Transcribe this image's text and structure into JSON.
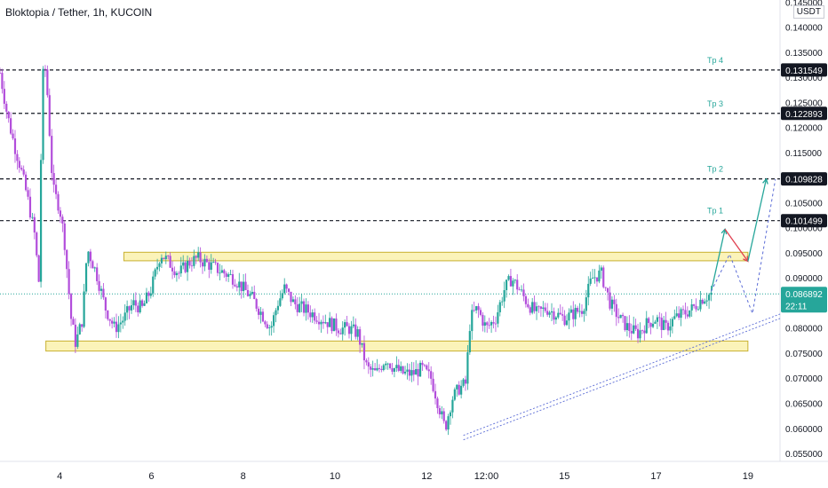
{
  "header": {
    "title": "Bloktopia / Tether, 1h, KUCOIN",
    "currency": "USDT"
  },
  "colors": {
    "up": "#26a69a",
    "down": "#b24ddb",
    "zone_fill": "#fbf3b9",
    "zone_stroke": "#c8b030",
    "target_text": "#26a69a",
    "trend": "#5b6cd6",
    "arrow_green": "#26a69a",
    "arrow_red": "#e04050",
    "price_tag": "#26a69a",
    "level_tag": "#131722"
  },
  "chart_data": {
    "type": "candlestick",
    "title": "Bloktopia / Tether, 1h, KUCOIN",
    "x_ticks": [
      "4",
      "6",
      "8",
      "10",
      "12",
      "12:00",
      "15",
      "17",
      "19"
    ],
    "y_ticks": [
      "0.055000",
      "0.060000",
      "0.065000",
      "0.070000",
      "0.075000",
      "0.080000",
      "0.085000",
      "0.090000",
      "0.095000",
      "0.100000",
      "0.105000",
      "0.110000",
      "0.115000",
      "0.120000",
      "0.125000",
      "0.130000",
      "0.135000",
      "0.140000",
      "0.145000"
    ],
    "ylim": [
      0.0535,
      0.1455
    ],
    "x_range_days": [
      2.7,
      19.7
    ],
    "current_price": {
      "value": 0.086892,
      "label": "0.086892",
      "countdown": "22:11"
    },
    "targets": [
      {
        "name": "Tp 1",
        "value": 0.101499,
        "label": "0.101499"
      },
      {
        "name": "Tp 2",
        "value": 0.109828,
        "label": "0.109828"
      },
      {
        "name": "Tp 3",
        "value": 0.122893,
        "label": "0.122893"
      },
      {
        "name": "Tp 4",
        "value": 0.131549,
        "label": "0.131549"
      }
    ],
    "zones": [
      {
        "from_day": 5.4,
        "to_day": 19.0,
        "low": 0.0935,
        "high": 0.0952
      },
      {
        "from_day": 3.7,
        "to_day": 19.0,
        "low": 0.0755,
        "high": 0.0775
      }
    ],
    "trendline": {
      "from": [
        12.8,
        0.0578
      ],
      "to": [
        19.7,
        0.082
      ]
    },
    "projection_solid": [
      [
        18.2,
        0.0874
      ],
      [
        18.5,
        0.0998
      ],
      [
        19.0,
        0.0934
      ],
      [
        19.4,
        0.1098
      ]
    ],
    "projection_dashed": [
      [
        18.2,
        0.0874
      ],
      [
        18.6,
        0.0948
      ],
      [
        19.1,
        0.083
      ],
      [
        19.6,
        0.1098
      ]
    ],
    "close_path": [
      [
        2.7,
        0.131
      ],
      [
        2.85,
        0.123
      ],
      [
        3.0,
        0.117
      ],
      [
        3.15,
        0.112
      ],
      [
        3.3,
        0.106
      ],
      [
        3.45,
        0.099
      ],
      [
        3.55,
        0.089
      ],
      [
        3.62,
        0.13
      ],
      [
        3.7,
        0.132
      ],
      [
        3.85,
        0.108
      ],
      [
        4.0,
        0.104
      ],
      [
        4.1,
        0.098
      ],
      [
        4.25,
        0.082
      ],
      [
        4.35,
        0.077
      ],
      [
        4.5,
        0.082
      ],
      [
        4.6,
        0.096
      ],
      [
        4.8,
        0.091
      ],
      [
        5.0,
        0.084
      ],
      [
        5.2,
        0.08
      ],
      [
        5.4,
        0.082
      ],
      [
        5.6,
        0.085
      ],
      [
        5.8,
        0.084
      ],
      [
        6.0,
        0.088
      ],
      [
        6.2,
        0.095
      ],
      [
        6.4,
        0.093
      ],
      [
        6.6,
        0.091
      ],
      [
        6.8,
        0.093
      ],
      [
        7.0,
        0.094
      ],
      [
        7.2,
        0.093
      ],
      [
        7.4,
        0.092
      ],
      [
        7.6,
        0.091
      ],
      [
        7.8,
        0.09
      ],
      [
        8.0,
        0.088
      ],
      [
        8.2,
        0.086
      ],
      [
        8.4,
        0.083
      ],
      [
        8.6,
        0.08
      ],
      [
        8.75,
        0.085
      ],
      [
        8.9,
        0.088
      ],
      [
        9.1,
        0.085
      ],
      [
        9.3,
        0.084
      ],
      [
        9.5,
        0.083
      ],
      [
        9.7,
        0.082
      ],
      [
        9.9,
        0.081
      ],
      [
        10.1,
        0.08
      ],
      [
        10.3,
        0.08
      ],
      [
        10.5,
        0.079
      ],
      [
        10.7,
        0.072
      ],
      [
        10.9,
        0.071
      ],
      [
        11.1,
        0.074
      ],
      [
        11.3,
        0.072
      ],
      [
        11.5,
        0.071
      ],
      [
        11.7,
        0.071
      ],
      [
        11.9,
        0.072
      ],
      [
        12.1,
        0.07
      ],
      [
        12.25,
        0.065
      ],
      [
        12.4,
        0.06
      ],
      [
        12.55,
        0.066
      ],
      [
        12.7,
        0.068
      ],
      [
        12.85,
        0.069
      ],
      [
        12.95,
        0.082
      ],
      [
        13.1,
        0.084
      ],
      [
        13.3,
        0.08
      ],
      [
        13.5,
        0.082
      ],
      [
        13.7,
        0.088
      ],
      [
        13.85,
        0.09
      ],
      [
        14.0,
        0.088
      ],
      [
        14.2,
        0.085
      ],
      [
        14.4,
        0.083
      ],
      [
        14.6,
        0.084
      ],
      [
        14.8,
        0.083
      ],
      [
        15.0,
        0.082
      ],
      [
        15.2,
        0.083
      ],
      [
        15.4,
        0.084
      ],
      [
        15.6,
        0.09
      ],
      [
        15.8,
        0.091
      ],
      [
        16.0,
        0.085
      ],
      [
        16.2,
        0.082
      ],
      [
        16.4,
        0.08
      ],
      [
        16.6,
        0.079
      ],
      [
        16.8,
        0.081
      ],
      [
        17.0,
        0.082
      ],
      [
        17.2,
        0.08
      ],
      [
        17.4,
        0.082
      ],
      [
        17.6,
        0.083
      ],
      [
        17.8,
        0.084
      ],
      [
        18.0,
        0.086
      ],
      [
        18.2,
        0.0869
      ]
    ]
  }
}
